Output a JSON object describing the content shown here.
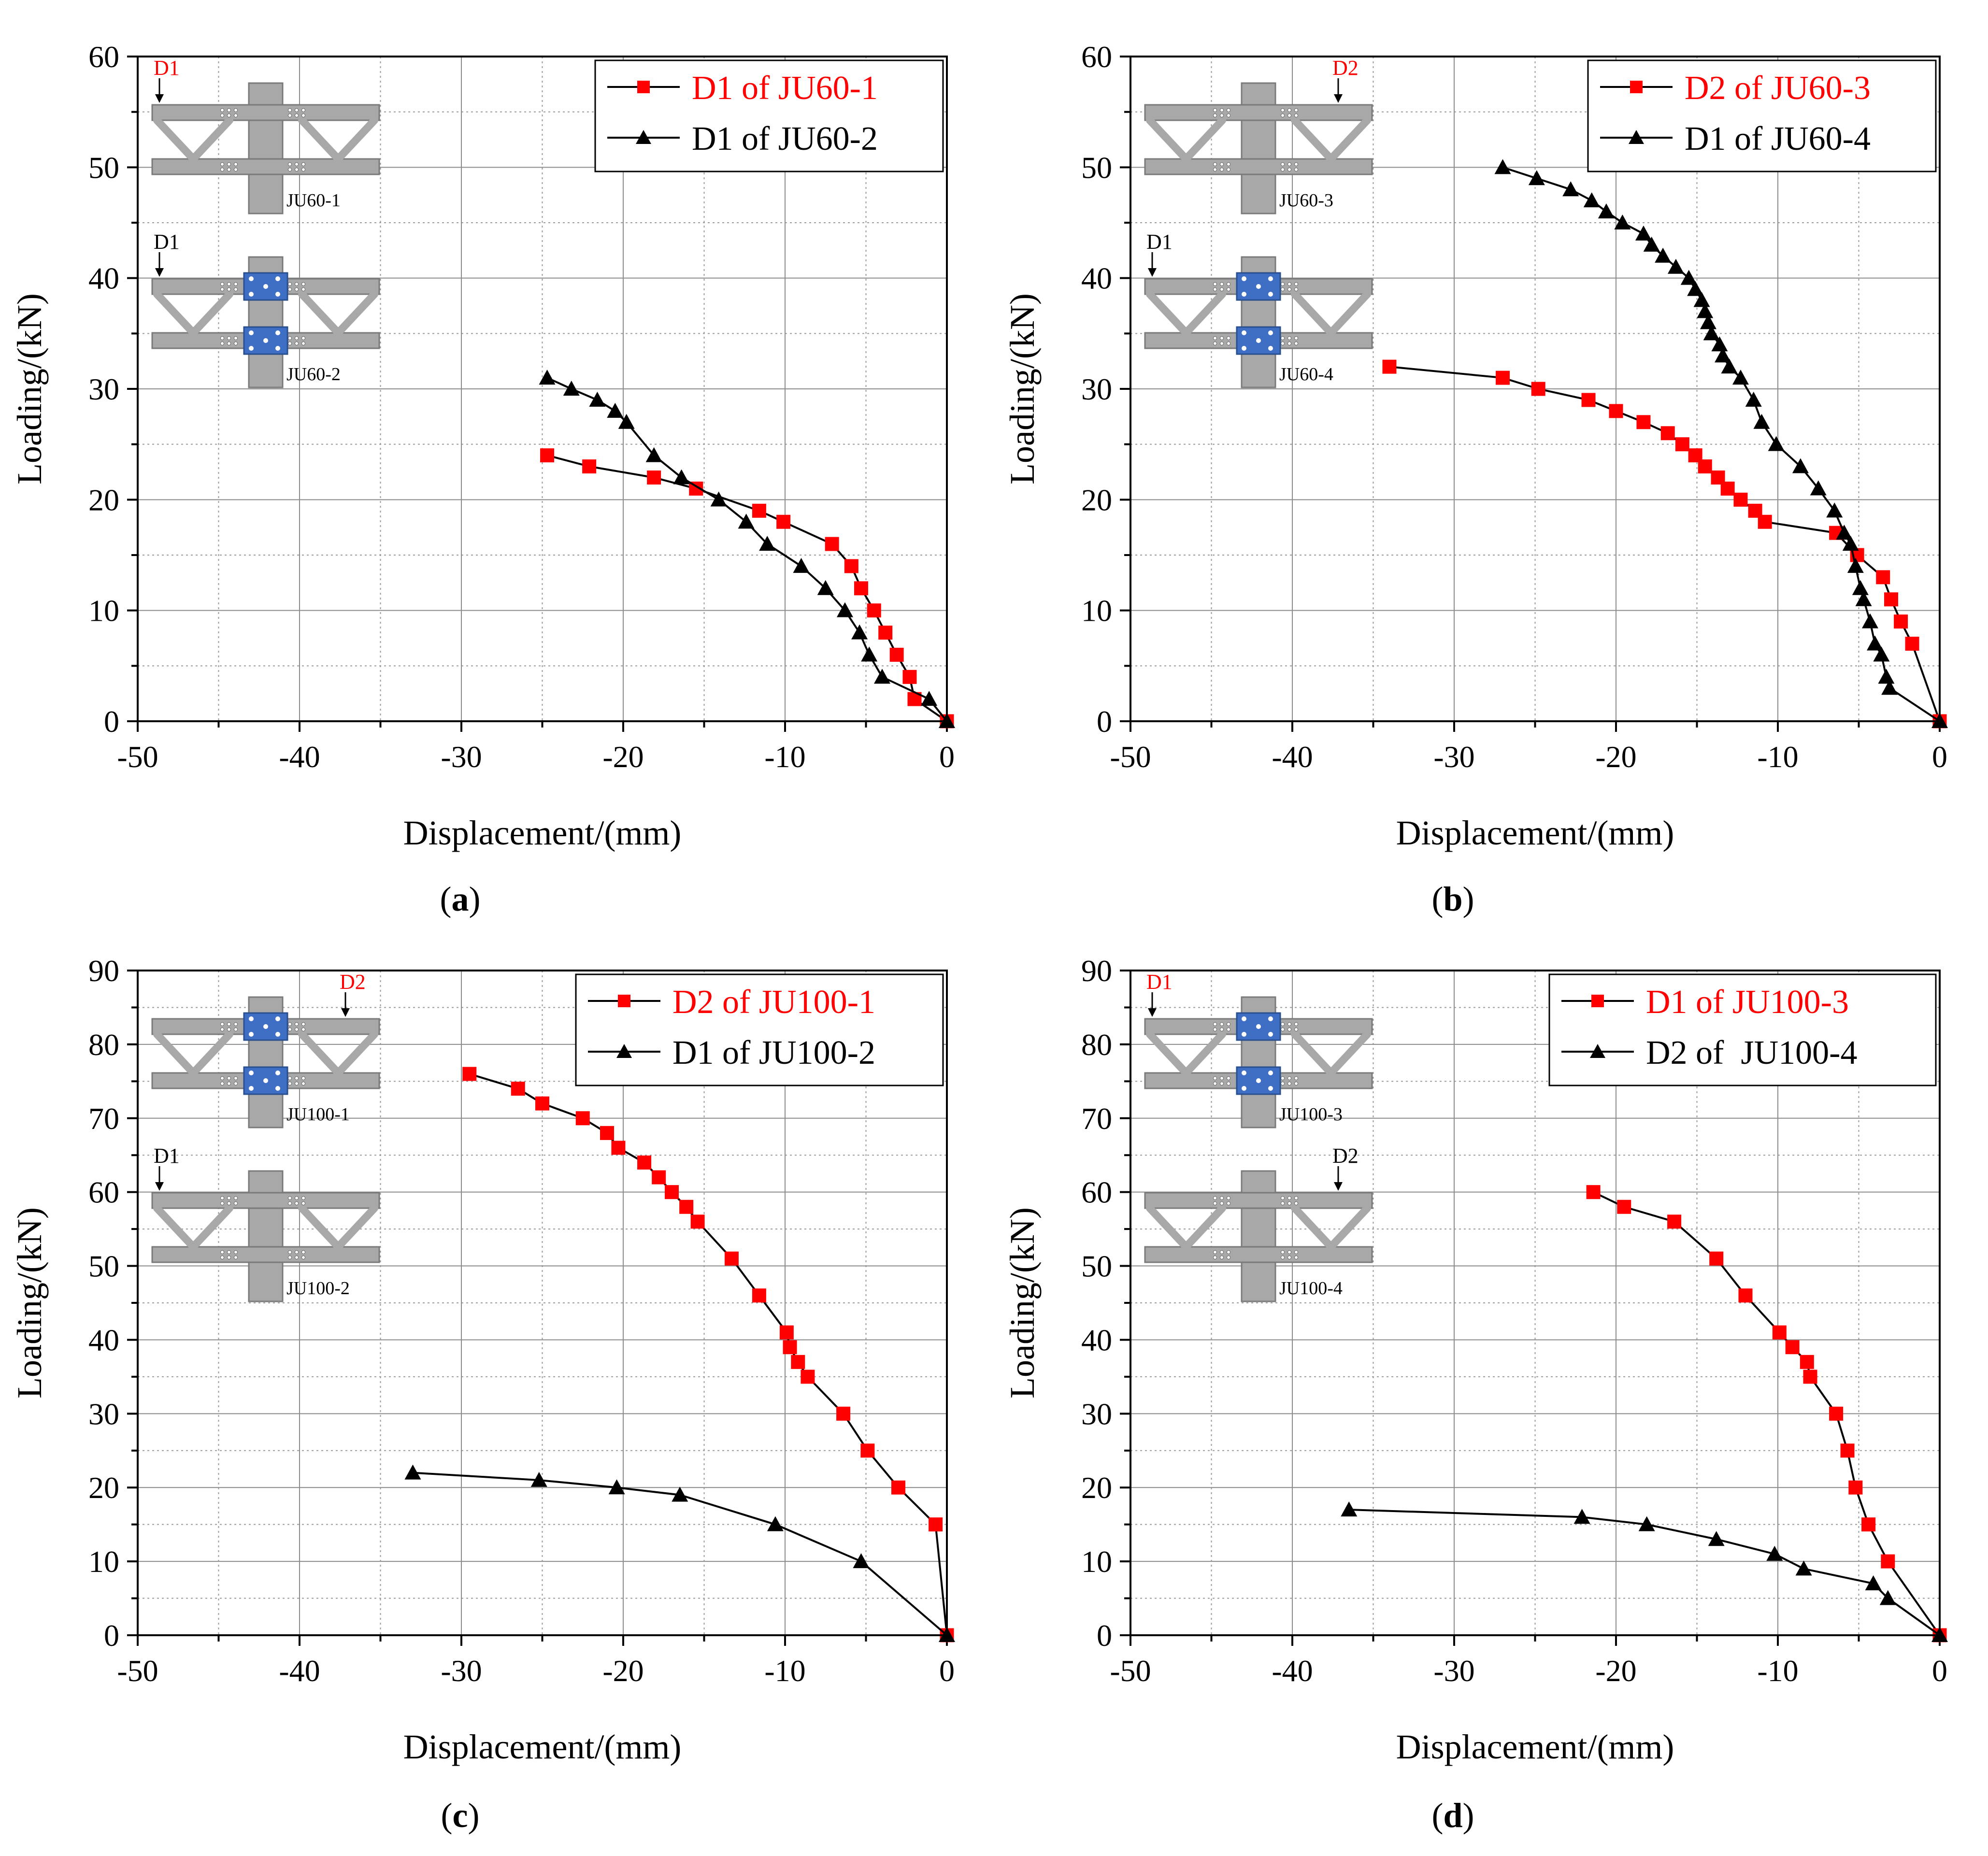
{
  "colors": {
    "red": "#ff0000",
    "black": "#000000",
    "beam": "#a8a8a8",
    "beam_stroke": "#7a7a7a",
    "plate": "#3f6fc4"
  },
  "chart_data": [
    {
      "panel": "a",
      "caption_letter": "a",
      "type": "line",
      "xlabel": "Displacement/(mm)",
      "ylabel": "Loading/(kN)",
      "xlim": [
        -50,
        0
      ],
      "ylim": [
        0,
        60
      ],
      "xticks": [
        -50,
        -40,
        -30,
        -20,
        -10,
        0
      ],
      "yticks": [
        0,
        10,
        20,
        30,
        40,
        50,
        60
      ],
      "grid": true,
      "legend_position": "top-right",
      "series": [
        {
          "name": "D1 of JU60-1",
          "color": "#ff0000",
          "marker": "square",
          "label_color": "#ff0000",
          "x": [
            -24.7,
            -22.1,
            -18.1,
            -15.5,
            -11.6,
            -10.1,
            -7.1,
            -5.9,
            -5.3,
            -4.5,
            -3.8,
            -3.1,
            -2.3,
            -2.0,
            0
          ],
          "y": [
            24,
            23,
            22,
            21,
            19,
            18,
            16,
            14,
            12,
            10,
            8,
            6,
            4,
            2,
            0
          ]
        },
        {
          "name": "D1 of JU60-2",
          "color": "#000000",
          "marker": "triangle",
          "label_color": "#000000",
          "x": [
            -24.7,
            -23.2,
            -21.6,
            -20.5,
            -19.8,
            -18.1,
            -16.4,
            -14.1,
            -12.4,
            -11.1,
            -9.0,
            -7.5,
            -6.3,
            -5.4,
            -4.8,
            -4.0,
            -1.1,
            0
          ],
          "y": [
            31,
            30,
            29,
            28,
            27,
            24,
            22,
            20,
            18,
            16,
            14,
            12,
            10,
            8,
            6,
            4,
            2,
            0
          ]
        }
      ],
      "inset": {
        "top_label": "D1",
        "top_label_color": "#ff0000",
        "top_label_side": "left",
        "top_id": "JU60-1",
        "top_plates": false,
        "bottom_label": "D1",
        "bottom_label_color": "#000000",
        "bottom_label_side": "left",
        "bottom_id": "JU60-2",
        "bottom_plates": true
      }
    },
    {
      "panel": "b",
      "caption_letter": "b",
      "type": "line",
      "xlabel": "Displacement/(mm)",
      "ylabel": "Loading/(kN)",
      "xlim": [
        -50,
        0
      ],
      "ylim": [
        0,
        60
      ],
      "xticks": [
        -50,
        -40,
        -30,
        -20,
        -10,
        0
      ],
      "yticks": [
        0,
        10,
        20,
        30,
        40,
        50,
        60
      ],
      "grid": true,
      "legend_position": "top-right",
      "series": [
        {
          "name": "D2 of JU60-3",
          "color": "#ff0000",
          "marker": "square",
          "label_color": "#ff0000",
          "x": [
            -34.0,
            -27.0,
            -24.8,
            -21.7,
            -20.0,
            -18.3,
            -16.8,
            -15.9,
            -15.1,
            -14.5,
            -13.7,
            -13.1,
            -12.3,
            -11.4,
            -10.8,
            -6.4,
            -5.1,
            -3.5,
            -3.0,
            -2.4,
            -1.7,
            0
          ],
          "y": [
            32,
            31,
            30,
            29,
            28,
            27,
            26,
            25,
            24,
            23,
            22,
            21,
            20,
            19,
            18,
            17,
            15,
            13,
            11,
            9,
            7,
            0
          ]
        },
        {
          "name": "D1 of JU60-4",
          "color": "#000000",
          "marker": "triangle",
          "label_color": "#000000",
          "x": [
            -27.0,
            -24.9,
            -22.8,
            -21.5,
            -20.6,
            -19.6,
            -18.3,
            -17.8,
            -17.1,
            -16.3,
            -15.5,
            -15.1,
            -14.7,
            -14.5,
            -14.3,
            -14.1,
            -13.6,
            -13.4,
            -13.0,
            -12.3,
            -11.5,
            -11.0,
            -10.1,
            -8.6,
            -7.5,
            -6.5,
            -5.9,
            -5.5,
            -5.2,
            -4.9,
            -4.7,
            -4.3,
            -4.0,
            -3.6,
            -3.3,
            -3.1,
            0
          ],
          "y": [
            50,
            49,
            48,
            47,
            46,
            45,
            44,
            43,
            42,
            41,
            40,
            39,
            38,
            37,
            36,
            35,
            34,
            33,
            32,
            31,
            29,
            27,
            25,
            23,
            21,
            19,
            17,
            16,
            14,
            12,
            11,
            9,
            7,
            6,
            4,
            3,
            0
          ]
        }
      ],
      "inset": {
        "top_label": "D2",
        "top_label_color": "#ff0000",
        "top_label_side": "right",
        "top_id": "JU60-3",
        "top_plates": false,
        "bottom_label": "D1",
        "bottom_label_color": "#000000",
        "bottom_label_side": "left",
        "bottom_id": "JU60-4",
        "bottom_plates": true
      }
    },
    {
      "panel": "c",
      "caption_letter": "c",
      "type": "line",
      "xlabel": "Displacement/(mm)",
      "ylabel": "Loading/(kN)",
      "xlim": [
        -50,
        0
      ],
      "ylim": [
        0,
        90
      ],
      "xticks": [
        -50,
        -40,
        -30,
        -20,
        -10,
        0
      ],
      "yticks": [
        0,
        10,
        20,
        30,
        40,
        50,
        60,
        70,
        80,
        90
      ],
      "grid": true,
      "legend_position": "top-right",
      "series": [
        {
          "name": "D2 of JU100-1",
          "color": "#ff0000",
          "marker": "square",
          "label_color": "#ff0000",
          "x": [
            -29.5,
            -26.5,
            -25.0,
            -22.5,
            -21.0,
            -20.3,
            -18.7,
            -17.8,
            -17.0,
            -16.1,
            -15.4,
            -13.3,
            -11.6,
            -9.9,
            -9.7,
            -9.2,
            -8.6,
            -6.4,
            -4.9,
            -3.0,
            -0.7,
            0
          ],
          "y": [
            76,
            74,
            72,
            70,
            68,
            66,
            64,
            62,
            60,
            58,
            56,
            51,
            46,
            41,
            39,
            37,
            35,
            30,
            25,
            20,
            15,
            0
          ]
        },
        {
          "name": "D1 of JU100-2",
          "color": "#000000",
          "marker": "triangle",
          "label_color": "#000000",
          "x": [
            -33.0,
            -25.2,
            -20.4,
            -16.5,
            -10.6,
            -5.3,
            0
          ],
          "y": [
            22,
            21,
            20,
            19,
            15,
            10,
            0
          ]
        }
      ],
      "inset": {
        "top_label": "D2",
        "top_label_color": "#ff0000",
        "top_label_side": "right",
        "top_id": "JU100-1",
        "top_plates": true,
        "bottom_label": "D1",
        "bottom_label_color": "#000000",
        "bottom_label_side": "left",
        "bottom_id": "JU100-2",
        "bottom_plates": false
      }
    },
    {
      "panel": "d",
      "caption_letter": "d",
      "type": "line",
      "xlabel": "Displacement/(mm)",
      "ylabel": "Loading/(kN)",
      "xlim": [
        -50,
        0
      ],
      "ylim": [
        0,
        90
      ],
      "xticks": [
        -50,
        -40,
        -30,
        -20,
        -10,
        0
      ],
      "yticks": [
        0,
        10,
        20,
        30,
        40,
        50,
        60,
        70,
        80,
        90
      ],
      "grid": true,
      "legend_position": "top-right",
      "series": [
        {
          "name": "D1 of JU100-3",
          "color": "#ff0000",
          "marker": "square",
          "label_color": "#ff0000",
          "x": [
            -21.4,
            -19.5,
            -16.4,
            -13.8,
            -12.0,
            -9.9,
            -9.1,
            -8.2,
            -8.0,
            -6.4,
            -5.7,
            -5.2,
            -4.4,
            -3.2,
            0
          ],
          "y": [
            60,
            58,
            56,
            51,
            46,
            41,
            39,
            37,
            35,
            30,
            25,
            20,
            15,
            10,
            0
          ]
        },
        {
          "name": "D2 of  JU100-4",
          "color": "#000000",
          "marker": "triangle",
          "label_color": "#000000",
          "x": [
            -36.5,
            -22.1,
            -18.1,
            -13.8,
            -10.2,
            -8.4,
            -4.1,
            -3.2,
            0
          ],
          "y": [
            17,
            16,
            15,
            13,
            11,
            9,
            7,
            5,
            0
          ]
        }
      ],
      "inset": {
        "top_label": "D1",
        "top_label_color": "#ff0000",
        "top_label_side": "left",
        "top_id": "JU100-3",
        "top_plates": true,
        "bottom_label": "D2",
        "bottom_label_color": "#000000",
        "bottom_label_side": "right",
        "bottom_id": "JU100-4",
        "bottom_plates": false
      }
    }
  ]
}
